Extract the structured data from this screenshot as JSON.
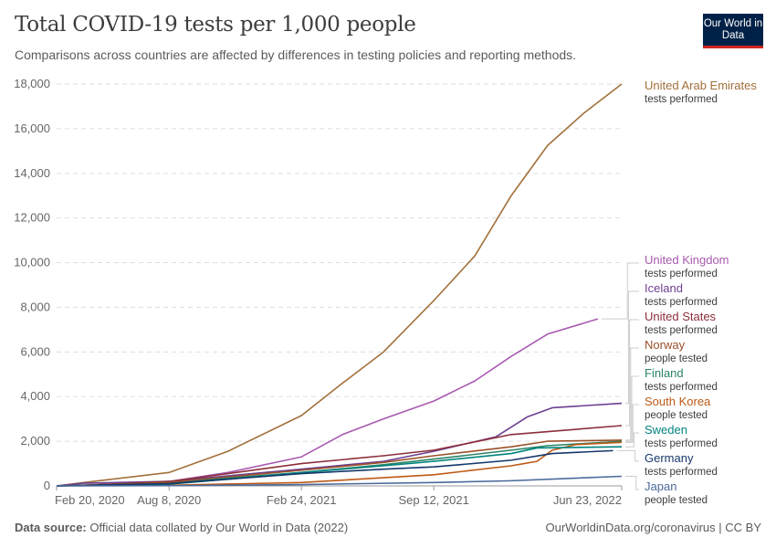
{
  "header": {
    "title": "Total COVID-19 tests per 1,000 people",
    "subtitle": "Comparisons across countries are affected by differences in testing policies and reporting methods.",
    "logo": "Our World in Data"
  },
  "footer": {
    "source_label": "Data source:",
    "source_text": "Official data collated by Our World in Data (2022)",
    "url": "OurWorldinData.org/coronavirus | CC BY"
  },
  "chart_data": {
    "type": "line",
    "title": "Total COVID-19 tests per 1,000 people",
    "ylim": [
      0,
      18000
    ],
    "y_ticks": [
      0,
      2000,
      4000,
      6000,
      8000,
      10000,
      12000,
      14000,
      16000,
      18000
    ],
    "y_tick_labels": [
      "0",
      "2,000",
      "4,000",
      "6,000",
      "8,000",
      "10,000",
      "12,000",
      "14,000",
      "16,000",
      "18,000"
    ],
    "x_range": [
      "2020-02-20",
      "2022-06-23"
    ],
    "x_ticks": [
      "2020-02-20",
      "2020-08-08",
      "2021-02-24",
      "2021-09-12",
      "2022-06-23"
    ],
    "x_tick_labels": [
      "Feb 20, 2020",
      "Aug 8, 2020",
      "Feb 24, 2021",
      "Sep 12, 2021",
      "Jun 23, 2022"
    ],
    "grid": "horizontal dashed",
    "legend": "right (labels at line ends)",
    "series": [
      {
        "name": "United Arab Emirates",
        "sub": "tests performed",
        "color": "#a2703b",
        "points": [
          [
            "2020-02-20",
            0
          ],
          [
            "2020-04-01",
            150
          ],
          [
            "2020-08-08",
            600
          ],
          [
            "2020-11-05",
            1550
          ],
          [
            "2021-02-24",
            3150
          ],
          [
            "2021-04-27",
            4600
          ],
          [
            "2021-06-28",
            6000
          ],
          [
            "2021-09-12",
            8300
          ],
          [
            "2021-11-13",
            10300
          ],
          [
            "2022-01-07",
            13000
          ],
          [
            "2022-03-03",
            15250
          ],
          [
            "2022-04-27",
            16700
          ],
          [
            "2022-06-23",
            18000
          ]
        ]
      },
      {
        "name": "United Kingdom",
        "sub": "tests performed",
        "color": "#a85ab0",
        "points": [
          [
            "2020-02-20",
            0
          ],
          [
            "2020-04-01",
            30
          ],
          [
            "2020-08-08",
            200
          ],
          [
            "2020-11-05",
            600
          ],
          [
            "2021-02-24",
            1300
          ],
          [
            "2021-04-27",
            2300
          ],
          [
            "2021-06-28",
            3000
          ],
          [
            "2021-09-12",
            3800
          ],
          [
            "2021-11-13",
            4700
          ],
          [
            "2022-01-07",
            5800
          ],
          [
            "2022-03-03",
            6800
          ],
          [
            "2022-05-18",
            7480
          ]
        ]
      },
      {
        "name": "Iceland",
        "sub": "tests performed",
        "color": "#6d3e91",
        "points": [
          [
            "2020-02-20",
            0
          ],
          [
            "2020-04-01",
            120
          ],
          [
            "2020-08-08",
            200
          ],
          [
            "2020-11-05",
            450
          ],
          [
            "2021-02-24",
            750
          ],
          [
            "2021-06-28",
            1100
          ],
          [
            "2021-09-12",
            1550
          ],
          [
            "2021-12-15",
            2200
          ],
          [
            "2022-02-01",
            3100
          ],
          [
            "2022-03-10",
            3500
          ],
          [
            "2022-06-23",
            3700
          ]
        ]
      },
      {
        "name": "United States",
        "sub": "tests performed",
        "color": "#8c2e3a",
        "points": [
          [
            "2020-02-20",
            0
          ],
          [
            "2020-04-01",
            20
          ],
          [
            "2020-08-08",
            200
          ],
          [
            "2020-11-05",
            550
          ],
          [
            "2021-02-24",
            1000
          ],
          [
            "2021-06-28",
            1350
          ],
          [
            "2021-09-12",
            1600
          ],
          [
            "2022-01-07",
            2300
          ],
          [
            "2022-06-23",
            2700
          ]
        ]
      },
      {
        "name": "Norway",
        "sub": "people tested",
        "color": "#9a5129",
        "points": [
          [
            "2020-02-20",
            0
          ],
          [
            "2020-08-08",
            150
          ],
          [
            "2020-11-05",
            400
          ],
          [
            "2021-02-24",
            700
          ],
          [
            "2021-06-28",
            1050
          ],
          [
            "2021-09-12",
            1350
          ],
          [
            "2022-01-07",
            1750
          ],
          [
            "2022-03-03",
            2000
          ],
          [
            "2022-06-23",
            2050
          ]
        ]
      },
      {
        "name": "Finland",
        "sub": "tests performed",
        "color": "#2c8465",
        "points": [
          [
            "2020-02-20",
            0
          ],
          [
            "2020-08-08",
            100
          ],
          [
            "2020-11-05",
            350
          ],
          [
            "2021-02-24",
            600
          ],
          [
            "2021-06-28",
            950
          ],
          [
            "2021-09-12",
            1200
          ],
          [
            "2022-01-07",
            1600
          ],
          [
            "2022-03-03",
            1800
          ],
          [
            "2022-06-23",
            2000
          ]
        ]
      },
      {
        "name": "South Korea",
        "sub": "people tested",
        "color": "#be5915",
        "points": [
          [
            "2020-02-20",
            0
          ],
          [
            "2020-08-08",
            30
          ],
          [
            "2021-02-24",
            150
          ],
          [
            "2021-09-12",
            500
          ],
          [
            "2022-01-07",
            900
          ],
          [
            "2022-02-15",
            1100
          ],
          [
            "2022-03-10",
            1600
          ],
          [
            "2022-04-15",
            1850
          ],
          [
            "2022-06-23",
            1950
          ]
        ]
      },
      {
        "name": "Sweden",
        "sub": "tests performed",
        "color": "#00847e",
        "points": [
          [
            "2020-02-20",
            0
          ],
          [
            "2020-08-08",
            80
          ],
          [
            "2020-11-05",
            300
          ],
          [
            "2021-02-24",
            600
          ],
          [
            "2021-06-28",
            900
          ],
          [
            "2021-09-12",
            1100
          ],
          [
            "2022-01-07",
            1450
          ],
          [
            "2022-02-15",
            1700
          ],
          [
            "2022-06-23",
            1750
          ]
        ]
      },
      {
        "name": "Germany",
        "sub": "tests performed",
        "color": "#15376b",
        "points": [
          [
            "2020-02-20",
            0
          ],
          [
            "2020-08-08",
            100
          ],
          [
            "2020-11-05",
            300
          ],
          [
            "2021-02-24",
            550
          ],
          [
            "2021-06-28",
            750
          ],
          [
            "2021-09-12",
            850
          ],
          [
            "2022-01-07",
            1150
          ],
          [
            "2022-03-10",
            1450
          ],
          [
            "2022-06-10",
            1580
          ]
        ]
      },
      {
        "name": "Japan",
        "sub": "people tested",
        "color": "#4c6a9c",
        "points": [
          [
            "2020-02-20",
            0
          ],
          [
            "2020-08-08",
            10
          ],
          [
            "2021-02-24",
            60
          ],
          [
            "2021-09-12",
            150
          ],
          [
            "2022-01-07",
            230
          ],
          [
            "2022-06-23",
            430
          ]
        ]
      }
    ]
  }
}
